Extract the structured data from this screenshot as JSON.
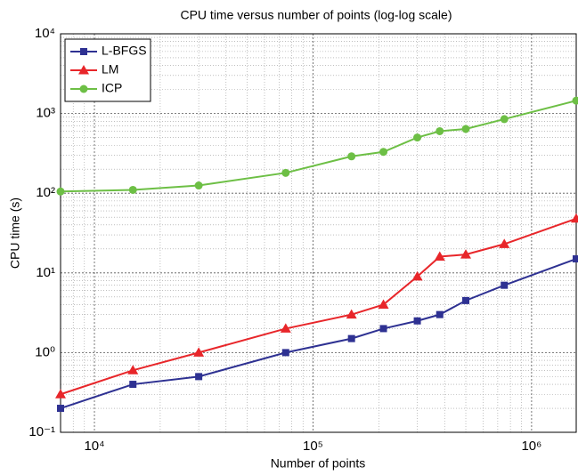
{
  "chart_data": {
    "type": "line",
    "title": "CPU time versus number of points (log-log scale)",
    "xlabel": "Number of points",
    "ylabel": "CPU time (s)",
    "xscale": "log",
    "yscale": "log",
    "grid": true,
    "legend": "upper left",
    "xlim": [
      7000,
      1600000
    ],
    "ylim": [
      0.1,
      10000
    ],
    "xticks": [
      {
        "value": 10000,
        "label": "10⁴"
      },
      {
        "value": 100000,
        "label": "10⁵"
      },
      {
        "value": 1000000,
        "label": "10⁶"
      }
    ],
    "yticks": [
      {
        "value": 0.1,
        "label": "10⁻¹"
      },
      {
        "value": 1,
        "label": "10⁰"
      },
      {
        "value": 10,
        "label": "10¹"
      },
      {
        "value": 100,
        "label": "10²"
      },
      {
        "value": 1000,
        "label": "10³"
      },
      {
        "value": 10000,
        "label": "10⁴"
      }
    ],
    "x": [
      7000,
      15000,
      30000,
      75000,
      150000,
      210000,
      300000,
      380000,
      500000,
      750000,
      1600000
    ],
    "series": [
      {
        "name": "L-BFGS",
        "color": "#2e3192",
        "marker": "square",
        "values": [
          0.2,
          0.4,
          0.5,
          1,
          1.5,
          2,
          2.5,
          3,
          4.5,
          7,
          15
        ]
      },
      {
        "name": "LM",
        "color": "#e8262a",
        "marker": "triangle",
        "values": [
          0.3,
          0.6,
          1,
          2,
          3,
          4,
          9,
          16,
          17,
          23,
          48
        ]
      },
      {
        "name": "ICP",
        "color": "#6dbf45",
        "marker": "circle",
        "values": [
          105,
          110,
          125,
          180,
          290,
          330,
          500,
          600,
          640,
          850,
          1450
        ]
      }
    ]
  }
}
